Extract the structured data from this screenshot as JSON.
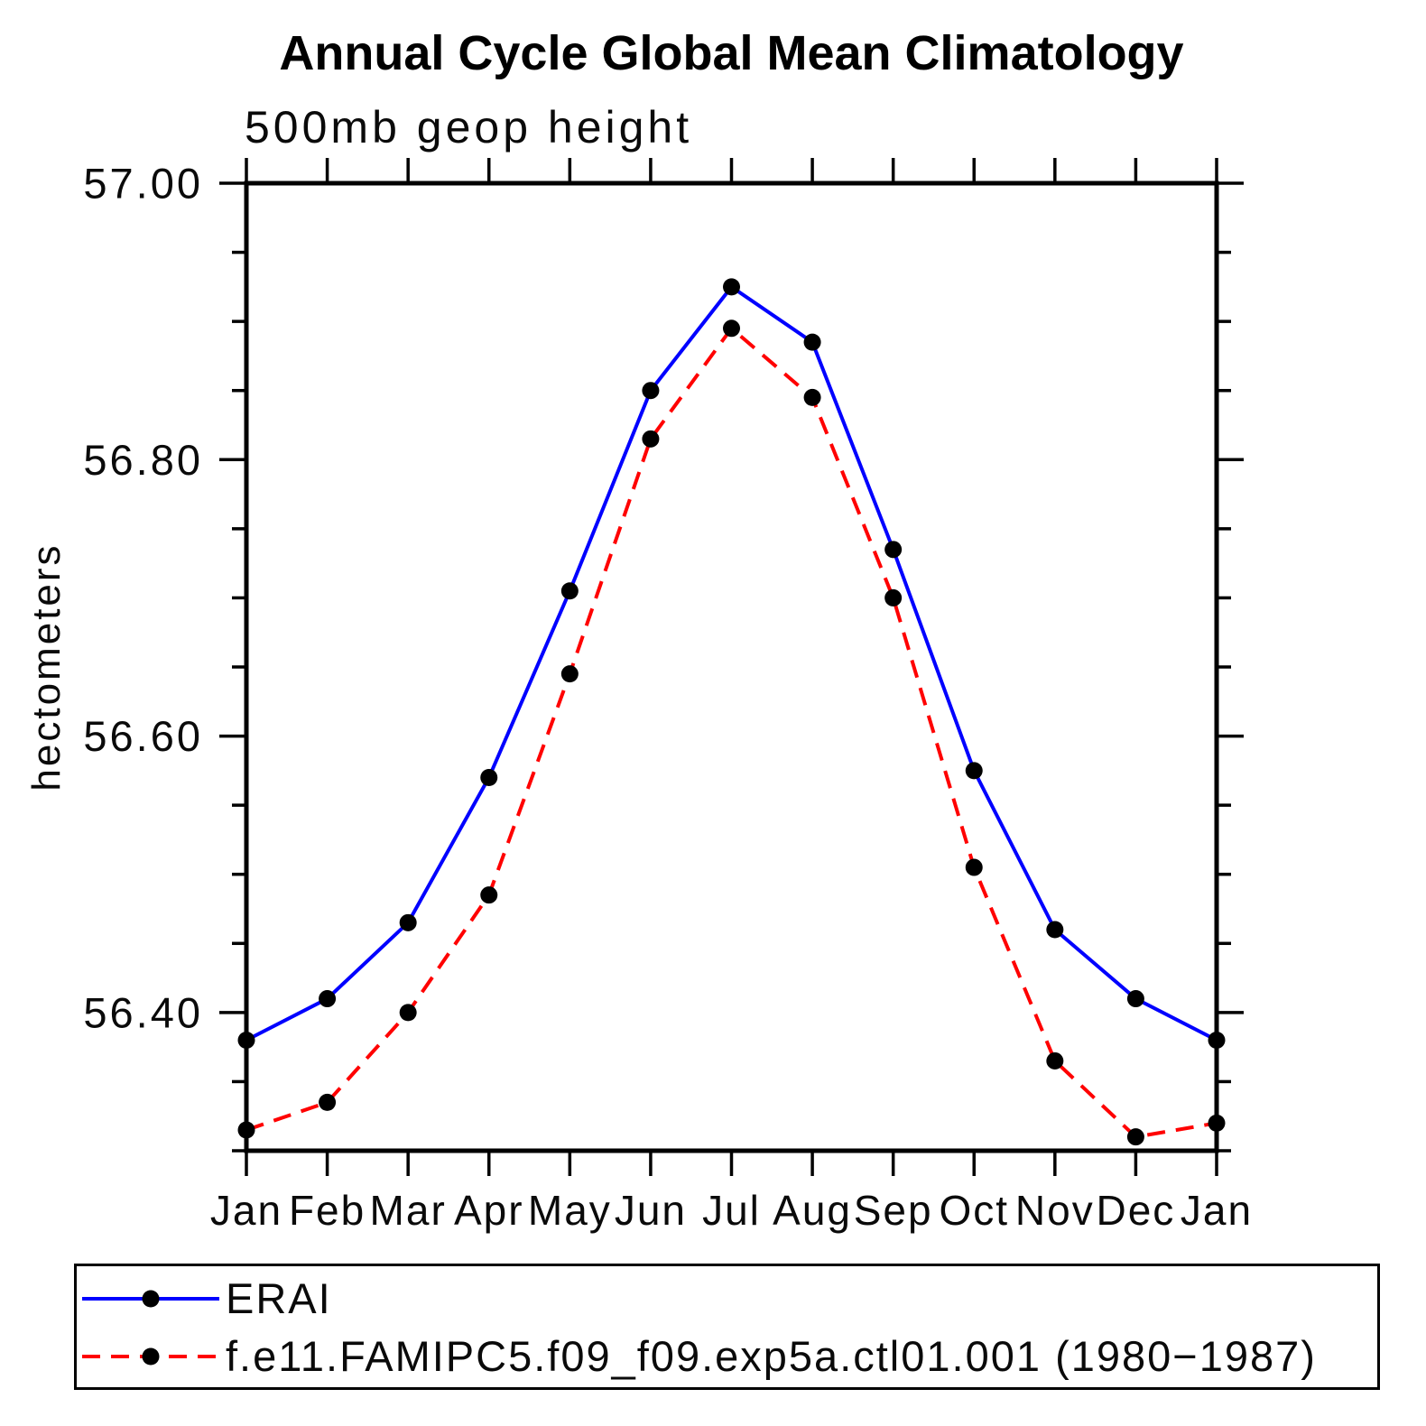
{
  "page": {
    "background": "#ffffff",
    "axis_color": "#000000"
  },
  "chart_data": {
    "type": "line",
    "title": "Annual Cycle Global Mean Climatology",
    "subtitle": "500mb geop height",
    "ylabel": "hectometers",
    "xlabel": "",
    "grid": false,
    "frame": "box-with-outward-ticks",
    "legend_position": "bottom",
    "categories": [
      "Jan",
      "Feb",
      "Mar",
      "Apr",
      "May",
      "Jun",
      "Jul",
      "Aug",
      "Sep",
      "Oct",
      "Nov",
      "Dec",
      "Jan"
    ],
    "y_axis": {
      "min": 56.3,
      "max": 57.0,
      "minor_tick_step": 0.05,
      "major_ticks": [
        {
          "value": 57.0,
          "label": "57.00"
        },
        {
          "value": 56.8,
          "label": "56.80"
        },
        {
          "value": 56.6,
          "label": "56.60"
        },
        {
          "value": 56.4,
          "label": "56.40"
        }
      ]
    },
    "series": [
      {
        "name": "ERAI",
        "color": "#0000ff",
        "line_style": "solid",
        "marker": "filled-circle",
        "marker_color": "#000000",
        "values": [
          56.38,
          56.41,
          56.465,
          56.57,
          56.705,
          56.85,
          56.925,
          56.885,
          56.735,
          56.575,
          56.46,
          56.41,
          56.38
        ]
      },
      {
        "name": "f.e11.FAMIPC5.f09_f09.exp5a.ctl01.001 (1980−1987)",
        "color": "#ff0000",
        "line_style": "dashed",
        "marker": "filled-circle",
        "marker_color": "#000000",
        "values": [
          56.315,
          56.335,
          56.4,
          56.485,
          56.645,
          56.815,
          56.895,
          56.845,
          56.7,
          56.505,
          56.365,
          56.31,
          56.32
        ]
      }
    ]
  }
}
